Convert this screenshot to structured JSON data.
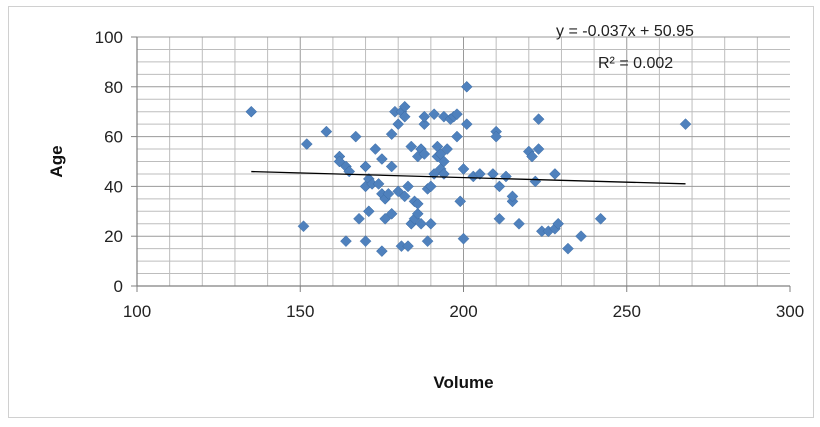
{
  "chart_data": {
    "type": "scatter",
    "title": "",
    "xlabel": "Volume",
    "ylabel": "Age",
    "xlim": [
      100,
      300
    ],
    "ylim": [
      0,
      100
    ],
    "x_ticks": [
      100,
      150,
      200,
      250,
      300
    ],
    "y_ticks": [
      0,
      20,
      40,
      60,
      80,
      100
    ],
    "grid": "on",
    "marker_color": "#4F81BD",
    "trendline": {
      "slope": -0.037,
      "intercept": 50.95,
      "x_range": [
        135,
        268
      ],
      "color": "#000000",
      "equation_label": "y = -0.037x + 50.95",
      "r2_label": "R² = 0.002"
    },
    "series": [
      {
        "points": [
          [
            135,
            70
          ],
          [
            151,
            24
          ],
          [
            152,
            57
          ],
          [
            158,
            62
          ],
          [
            162,
            52
          ],
          [
            162,
            50
          ],
          [
            164,
            48
          ],
          [
            164,
            18
          ],
          [
            165,
            46
          ],
          [
            167,
            60
          ],
          [
            168,
            27
          ],
          [
            170,
            48
          ],
          [
            170,
            40
          ],
          [
            170,
            18
          ],
          [
            171,
            30
          ],
          [
            171,
            43
          ],
          [
            172,
            41
          ],
          [
            173,
            55
          ],
          [
            174,
            41
          ],
          [
            175,
            37
          ],
          [
            175,
            51
          ],
          [
            175,
            14
          ],
          [
            176,
            27
          ],
          [
            176,
            35
          ],
          [
            177,
            37
          ],
          [
            178,
            61
          ],
          [
            178,
            48
          ],
          [
            178,
            29
          ],
          [
            179,
            70
          ],
          [
            180,
            65
          ],
          [
            180,
            38
          ],
          [
            181,
            16
          ],
          [
            181,
            70
          ],
          [
            182,
            72
          ],
          [
            182,
            68
          ],
          [
            182,
            36
          ],
          [
            183,
            40
          ],
          [
            183,
            16
          ],
          [
            184,
            56
          ],
          [
            184,
            25
          ],
          [
            185,
            27
          ],
          [
            185,
            34
          ],
          [
            186,
            52
          ],
          [
            186,
            29
          ],
          [
            186,
            33
          ],
          [
            187,
            25
          ],
          [
            187,
            55
          ],
          [
            188,
            65
          ],
          [
            188,
            68
          ],
          [
            188,
            53
          ],
          [
            189,
            39
          ],
          [
            189,
            18
          ],
          [
            190,
            40
          ],
          [
            190,
            25
          ],
          [
            191,
            69
          ],
          [
            191,
            45
          ],
          [
            192,
            52
          ],
          [
            192,
            56
          ],
          [
            193,
            53
          ],
          [
            193,
            47
          ],
          [
            194,
            45
          ],
          [
            194,
            50
          ],
          [
            194,
            68
          ],
          [
            195,
            55
          ],
          [
            196,
            67
          ],
          [
            197,
            68
          ],
          [
            198,
            69
          ],
          [
            198,
            60
          ],
          [
            199,
            34
          ],
          [
            200,
            19
          ],
          [
            200,
            47
          ],
          [
            201,
            80
          ],
          [
            201,
            65
          ],
          [
            203,
            44
          ],
          [
            205,
            45
          ],
          [
            209,
            45
          ],
          [
            210,
            62
          ],
          [
            210,
            60
          ],
          [
            211,
            40
          ],
          [
            211,
            27
          ],
          [
            213,
            44
          ],
          [
            215,
            34
          ],
          [
            215,
            36
          ],
          [
            217,
            25
          ],
          [
            220,
            54
          ],
          [
            221,
            52
          ],
          [
            222,
            42
          ],
          [
            223,
            55
          ],
          [
            223,
            67
          ],
          [
            224,
            22
          ],
          [
            226,
            22
          ],
          [
            228,
            23
          ],
          [
            228,
            45
          ],
          [
            229,
            25
          ],
          [
            232,
            15
          ],
          [
            236,
            20
          ],
          [
            242,
            27
          ],
          [
            268,
            65
          ]
        ]
      }
    ]
  }
}
